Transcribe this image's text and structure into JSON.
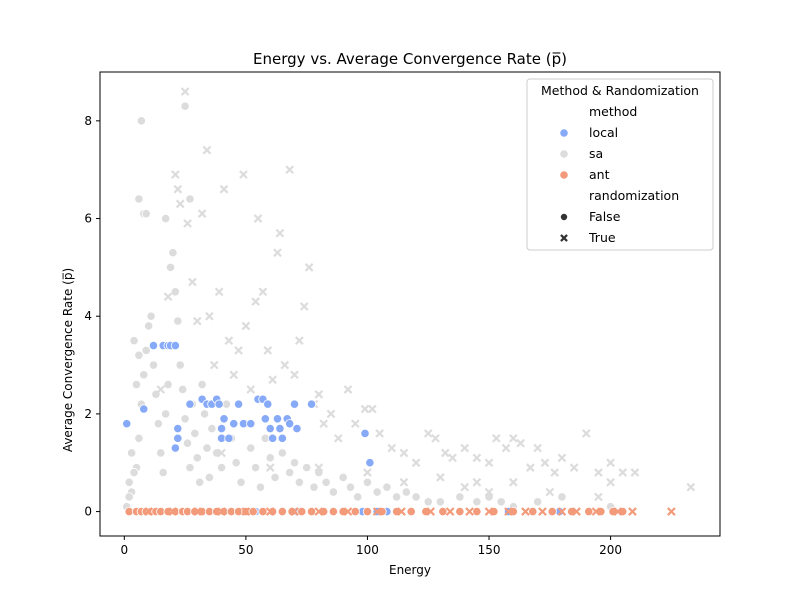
{
  "chart_data": {
    "type": "scatter",
    "title": "Energy vs. Average Convergence Rate (p̅)",
    "xlabel": "Energy",
    "ylabel": "Average Convergence Rate (p̅)",
    "xlim": [
      -10,
      245
    ],
    "ylim": [
      -0.5,
      9.0
    ],
    "xticks": [
      0,
      50,
      100,
      150,
      200
    ],
    "yticks": [
      0,
      2,
      4,
      6,
      8
    ],
    "grid": false,
    "legend": {
      "title": "Method & Randomization",
      "placement": "top-right",
      "method_header": "method",
      "methods": [
        {
          "label": "local",
          "color": "#86A9F8"
        },
        {
          "label": "sa",
          "color": "#DCDCDC"
        },
        {
          "label": "ant",
          "color": "#F29A7A"
        }
      ],
      "randomization_header": "randomization",
      "markers": [
        {
          "label": "False",
          "marker": "circle"
        },
        {
          "label": "True",
          "marker": "x"
        }
      ]
    },
    "series": [
      {
        "method": "local",
        "randomization": "False",
        "points": [
          [
            1,
            1.8
          ],
          [
            8,
            2.1
          ],
          [
            12,
            3.4
          ],
          [
            16,
            3.4
          ],
          [
            18,
            3.4
          ],
          [
            19,
            3.4
          ],
          [
            21,
            3.4
          ],
          [
            22,
            1.7
          ],
          [
            22,
            1.5
          ],
          [
            21,
            1.3
          ],
          [
            27,
            2.2
          ],
          [
            32,
            2.3
          ],
          [
            34,
            2.2
          ],
          [
            36,
            2.2
          ],
          [
            38,
            2.3
          ],
          [
            39,
            2.2
          ],
          [
            40,
            1.7
          ],
          [
            40,
            1.5
          ],
          [
            41,
            1.9
          ],
          [
            43,
            1.5
          ],
          [
            45,
            1.8
          ],
          [
            47,
            2.2
          ],
          [
            49,
            1.8
          ],
          [
            52,
            1.8
          ],
          [
            55,
            2.3
          ],
          [
            57,
            2.3
          ],
          [
            58,
            1.9
          ],
          [
            59,
            2.2
          ],
          [
            60,
            1.7
          ],
          [
            61,
            1.5
          ],
          [
            63,
            1.9
          ],
          [
            64,
            1.7
          ],
          [
            65,
            1.5
          ],
          [
            67,
            1.9
          ],
          [
            68,
            1.8
          ],
          [
            70,
            2.2
          ],
          [
            71,
            1.7
          ],
          [
            77,
            2.2
          ],
          [
            99,
            1.6
          ],
          [
            101,
            1.0
          ],
          [
            54,
            0
          ],
          [
            71,
            0
          ],
          [
            98,
            0
          ],
          [
            104,
            0
          ],
          [
            108,
            0
          ],
          [
            124,
            0
          ],
          [
            158,
            0
          ],
          [
            179,
            0
          ]
        ]
      },
      {
        "method": "sa",
        "randomization": "False",
        "points": [
          [
            3,
            0.4
          ],
          [
            5,
            0.9
          ],
          [
            6,
            1.5
          ],
          [
            7,
            2.2
          ],
          [
            8,
            2.8
          ],
          [
            9,
            3.3
          ],
          [
            10,
            3.8
          ],
          [
            11,
            4.0
          ],
          [
            12,
            3.0
          ],
          [
            13,
            2.4
          ],
          [
            14,
            1.8
          ],
          [
            15,
            1.2
          ],
          [
            16,
            0.8
          ],
          [
            17,
            2.0
          ],
          [
            18,
            2.6
          ],
          [
            19,
            5.0
          ],
          [
            20,
            5.3
          ],
          [
            21,
            4.5
          ],
          [
            22,
            3.9
          ],
          [
            23,
            3.0
          ],
          [
            24,
            2.5
          ],
          [
            25,
            1.9
          ],
          [
            26,
            1.4
          ],
          [
            27,
            0.9
          ],
          [
            28,
            2.2
          ],
          [
            29,
            1.6
          ],
          [
            30,
            1.1
          ],
          [
            31,
            0.6
          ],
          [
            32,
            2.6
          ],
          [
            33,
            2.0
          ],
          [
            34,
            1.3
          ],
          [
            35,
            0.7
          ],
          [
            36,
            1.7
          ],
          [
            38,
            1.2
          ],
          [
            40,
            0.9
          ],
          [
            42,
            2.2
          ],
          [
            44,
            1.5
          ],
          [
            46,
            1.0
          ],
          [
            48,
            0.6
          ],
          [
            50,
            1.8
          ],
          [
            52,
            1.3
          ],
          [
            54,
            0.9
          ],
          [
            56,
            0.5
          ],
          [
            58,
            1.5
          ],
          [
            60,
            1.1
          ],
          [
            62,
            0.7
          ],
          [
            65,
            1.2
          ],
          [
            68,
            0.8
          ],
          [
            70,
            1.0
          ],
          [
            72,
            0.6
          ],
          [
            75,
            0.9
          ],
          [
            78,
            0.5
          ],
          [
            80,
            0.8
          ],
          [
            83,
            0.6
          ],
          [
            86,
            0.4
          ],
          [
            90,
            0.7
          ],
          [
            93,
            0.5
          ],
          [
            96,
            0.3
          ],
          [
            100,
            0.6
          ],
          [
            104,
            0.4
          ],
          [
            108,
            0.5
          ],
          [
            112,
            0.3
          ],
          [
            116,
            0.4
          ],
          [
            120,
            0.3
          ],
          [
            125,
            0.2
          ],
          [
            130,
            0.2
          ],
          [
            138,
            0.3
          ],
          [
            145,
            0.2
          ],
          [
            150,
            0.3
          ],
          [
            155,
            0.2
          ],
          [
            160,
            0.1
          ],
          [
            170,
            0.2
          ],
          [
            180,
            0.3
          ],
          [
            200,
            0.1
          ],
          [
            6,
            6.4
          ],
          [
            7,
            8.0
          ],
          [
            8,
            6.1
          ],
          [
            9,
            6.1
          ],
          [
            17,
            6.0
          ],
          [
            25,
            8.3
          ],
          [
            27,
            6.4
          ],
          [
            4,
            3.5
          ],
          [
            5,
            2.6
          ],
          [
            6,
            3.2
          ],
          [
            3,
            1.2
          ],
          [
            4,
            0.8
          ],
          [
            2,
            0.3
          ],
          [
            1,
            0.1
          ],
          [
            2,
            0.6
          ]
        ]
      },
      {
        "method": "sa",
        "randomization": "True",
        "points": [
          [
            15,
            2.5
          ],
          [
            18,
            4.4
          ],
          [
            21,
            6.9
          ],
          [
            22,
            6.6
          ],
          [
            23,
            6.3
          ],
          [
            25,
            8.6
          ],
          [
            26,
            5.9
          ],
          [
            28,
            4.7
          ],
          [
            30,
            3.9
          ],
          [
            32,
            6.1
          ],
          [
            34,
            7.4
          ],
          [
            35,
            4.0
          ],
          [
            37,
            3.0
          ],
          [
            39,
            4.5
          ],
          [
            41,
            6.6
          ],
          [
            43,
            3.5
          ],
          [
            45,
            2.8
          ],
          [
            47,
            3.3
          ],
          [
            49,
            6.9
          ],
          [
            50,
            3.8
          ],
          [
            52,
            2.5
          ],
          [
            54,
            4.3
          ],
          [
            55,
            6.0
          ],
          [
            57,
            4.5
          ],
          [
            59,
            3.3
          ],
          [
            61,
            2.7
          ],
          [
            63,
            5.3
          ],
          [
            64,
            5.7
          ],
          [
            66,
            3.0
          ],
          [
            68,
            7.0
          ],
          [
            70,
            2.8
          ],
          [
            72,
            3.5
          ],
          [
            74,
            4.2
          ],
          [
            76,
            5.0
          ],
          [
            78,
            2.2
          ],
          [
            80,
            2.4
          ],
          [
            82,
            1.8
          ],
          [
            85,
            2.0
          ],
          [
            88,
            1.5
          ],
          [
            92,
            2.5
          ],
          [
            95,
            1.8
          ],
          [
            99,
            2.1
          ],
          [
            102,
            2.1
          ],
          [
            105,
            1.6
          ],
          [
            110,
            1.3
          ],
          [
            115,
            1.2
          ],
          [
            120,
            1.0
          ],
          [
            125,
            1.6
          ],
          [
            128,
            1.5
          ],
          [
            132,
            1.2
          ],
          [
            135,
            1.1
          ],
          [
            140,
            1.3
          ],
          [
            145,
            1.1
          ],
          [
            150,
            1.0
          ],
          [
            153,
            1.5
          ],
          [
            157,
            1.3
          ],
          [
            160,
            1.5
          ],
          [
            163,
            1.4
          ],
          [
            167,
            0.9
          ],
          [
            170,
            1.3
          ],
          [
            173,
            1.0
          ],
          [
            177,
            0.8
          ],
          [
            180,
            1.1
          ],
          [
            185,
            0.9
          ],
          [
            190,
            1.6
          ],
          [
            195,
            0.8
          ],
          [
            200,
            1.0
          ],
          [
            205,
            0.8
          ],
          [
            210,
            0.8
          ],
          [
            233,
            0.5
          ],
          [
            140,
            0.5
          ],
          [
            150,
            0.4
          ],
          [
            160,
            0.6
          ],
          [
            175,
            0.4
          ],
          [
            195,
            0.3
          ],
          [
            200,
            0.6
          ],
          [
            40,
            1.2
          ],
          [
            60,
            0.9
          ],
          [
            80,
            0.9
          ],
          [
            100,
            0.8
          ],
          [
            115,
            0.6
          ],
          [
            130,
            0.7
          ],
          [
            145,
            0.6
          ]
        ]
      },
      {
        "method": "ant",
        "randomization": "False",
        "points": [
          [
            2,
            0
          ],
          [
            5,
            0
          ],
          [
            7,
            0
          ],
          [
            9,
            0
          ],
          [
            11,
            0
          ],
          [
            13,
            0
          ],
          [
            15,
            0
          ],
          [
            18,
            0
          ],
          [
            21,
            0
          ],
          [
            24,
            0
          ],
          [
            26,
            0
          ],
          [
            29,
            0
          ],
          [
            32,
            0
          ],
          [
            35,
            0
          ],
          [
            38,
            0
          ],
          [
            41,
            0
          ],
          [
            44,
            0
          ],
          [
            47,
            0
          ],
          [
            50,
            0
          ],
          [
            53,
            0
          ],
          [
            57,
            0
          ],
          [
            61,
            0
          ],
          [
            65,
            0
          ],
          [
            69,
            0
          ],
          [
            73,
            0
          ],
          [
            77,
            0
          ],
          [
            82,
            0
          ],
          [
            86,
            0
          ],
          [
            90,
            0
          ],
          [
            95,
            0
          ],
          [
            100,
            0
          ],
          [
            106,
            0
          ],
          [
            112,
            0
          ],
          [
            118,
            0
          ],
          [
            124,
            0
          ],
          [
            131,
            0
          ],
          [
            138,
            0
          ],
          [
            145,
            0
          ],
          [
            152,
            0
          ],
          [
            160,
            0
          ],
          [
            168,
            0
          ],
          [
            176,
            0
          ],
          [
            184,
            0
          ],
          [
            191,
            0
          ],
          [
            196,
            0
          ],
          [
            201,
            0
          ],
          [
            205,
            0
          ]
        ]
      },
      {
        "method": "ant",
        "randomization": "True",
        "points": [
          [
            10,
            0
          ],
          [
            20,
            0
          ],
          [
            30,
            0
          ],
          [
            40,
            0
          ],
          [
            50,
            0
          ],
          [
            60,
            0
          ],
          [
            70,
            0
          ],
          [
            80,
            0
          ],
          [
            92,
            0
          ],
          [
            104,
            0
          ],
          [
            114,
            0
          ],
          [
            126,
            0
          ],
          [
            134,
            0
          ],
          [
            142,
            0
          ],
          [
            150,
            0
          ],
          [
            158,
            0
          ],
          [
            165,
            0
          ],
          [
            172,
            0
          ],
          [
            180,
            0
          ],
          [
            186,
            0
          ],
          [
            194,
            0
          ],
          [
            203,
            0
          ],
          [
            209,
            0
          ],
          [
            225,
            0
          ]
        ]
      }
    ]
  }
}
